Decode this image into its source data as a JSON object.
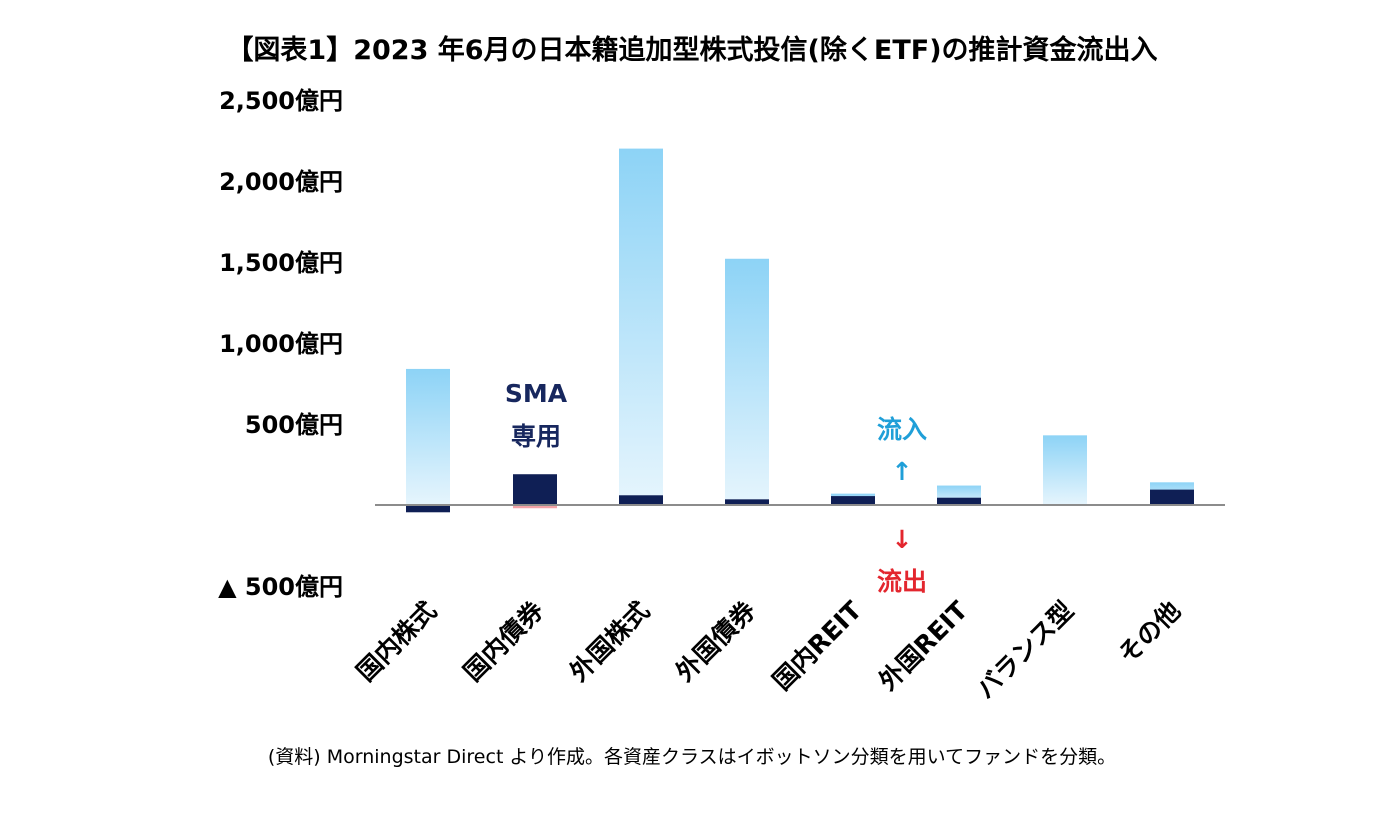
{
  "title": "【図表1】2023 年6月の日本籍追加型株式投信(除くETF)の推計資金流出入",
  "source": "(資料) Morningstar Direct より作成。各資産クラスはイボットソン分類を用いてファンドを分類。",
  "annotations": {
    "sma_line1": "SMA",
    "sma_line2": "専用",
    "inflow": "流入",
    "outflow": "流出",
    "up_arrow": "↑",
    "down_arrow": "↓"
  },
  "colors": {
    "main_series_gradient_top": "#8dd3f6",
    "main_series_gradient_bottom": "#e6f5fd",
    "sma_series": "#0f1f55",
    "sma_outflow": "#f4a3a8",
    "axis": "#8c8c8c",
    "inflow_text": "#1f9fd8",
    "outflow_text": "#e3262e"
  },
  "chart_data": {
    "type": "bar",
    "title": "【図表1】2023 年6月の日本籍追加型株式投信(除くETF)の推計資金流出入",
    "categories": [
      "国内株式",
      "国内債券",
      "外国株式",
      "外国債券",
      "国内REIT",
      "外国REIT",
      "バランス型",
      "その他"
    ],
    "series": [
      {
        "values": [
          840,
          -20,
          2200,
          1520,
          70,
          120,
          430,
          140
        ]
      },
      {
        "values": [
          -45,
          190,
          60,
          35,
          55,
          45,
          0,
          95
        ]
      }
    ],
    "ylim": [
      -500,
      2500
    ],
    "yticks": [
      2500,
      2000,
      1500,
      1000,
      500,
      -500
    ],
    "ytick_labels": [
      "2,500億円",
      "2,000億円",
      "1,500億円",
      "1,000億円",
      "500億円",
      "▲ 500億円"
    ],
    "grid": false
  }
}
